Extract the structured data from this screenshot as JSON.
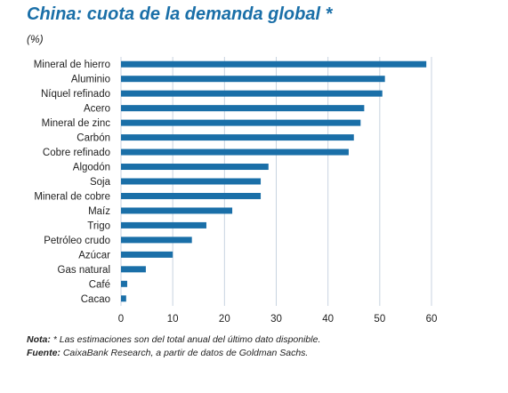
{
  "chart_data": {
    "type": "bar",
    "orientation": "horizontal",
    "title": "China: cuota de la demanda global *",
    "unit_label": "(%)",
    "categories": [
      "Mineral de hierro",
      "Aluminio",
      "Níquel refinado",
      "Acero",
      "Mineral de zinc",
      "Carbón",
      "Cobre refinado",
      "Algodón",
      "Soja",
      "Mineral de cobre",
      "Maíz",
      "Trigo",
      "Petróleo crudo",
      "Azúcar",
      "Gas natural",
      "Café",
      "Cacao"
    ],
    "values": [
      59,
      51,
      50.5,
      47,
      46.3,
      45,
      44,
      28.5,
      27,
      27,
      21.5,
      16.5,
      13.7,
      10,
      4.8,
      1.2,
      1
    ],
    "xlim": [
      0,
      60
    ],
    "xticks": [
      0,
      10,
      20,
      30,
      40,
      50,
      60
    ],
    "xtick_labels": [
      "0",
      "10",
      "20",
      "30",
      "40",
      "50",
      "60"
    ],
    "grid": true,
    "bar_color": "#1a6fa8",
    "grid_color": "#c8d3e0"
  },
  "footnote": {
    "note_label": "Nota:",
    "note_text": " * Las estimaciones son del total anual del último dato disponible.",
    "source_label": "Fuente:",
    "source_text": " CaixaBank Research, a partir de datos de Goldman Sachs."
  }
}
